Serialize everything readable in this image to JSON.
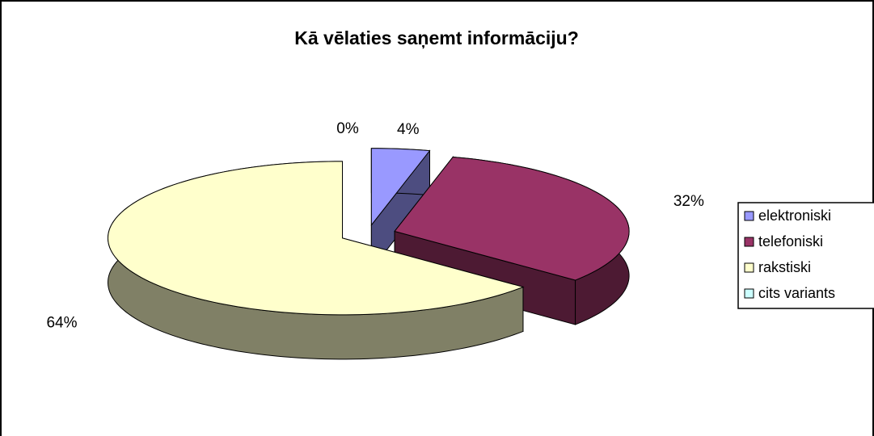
{
  "chart_data": {
    "type": "pie",
    "title": "Kā vēlaties saņemt informāciju?",
    "categories": [
      "elektroniski",
      "telefoniski",
      "rakstiski",
      "cits variants"
    ],
    "values": [
      4,
      32,
      64,
      0
    ],
    "value_labels": [
      "4%",
      "32%",
      "64%",
      "0%"
    ],
    "colors": [
      "#9999ff",
      "#993366",
      "#ffffcc",
      "#ccffff"
    ],
    "legend": "right"
  }
}
